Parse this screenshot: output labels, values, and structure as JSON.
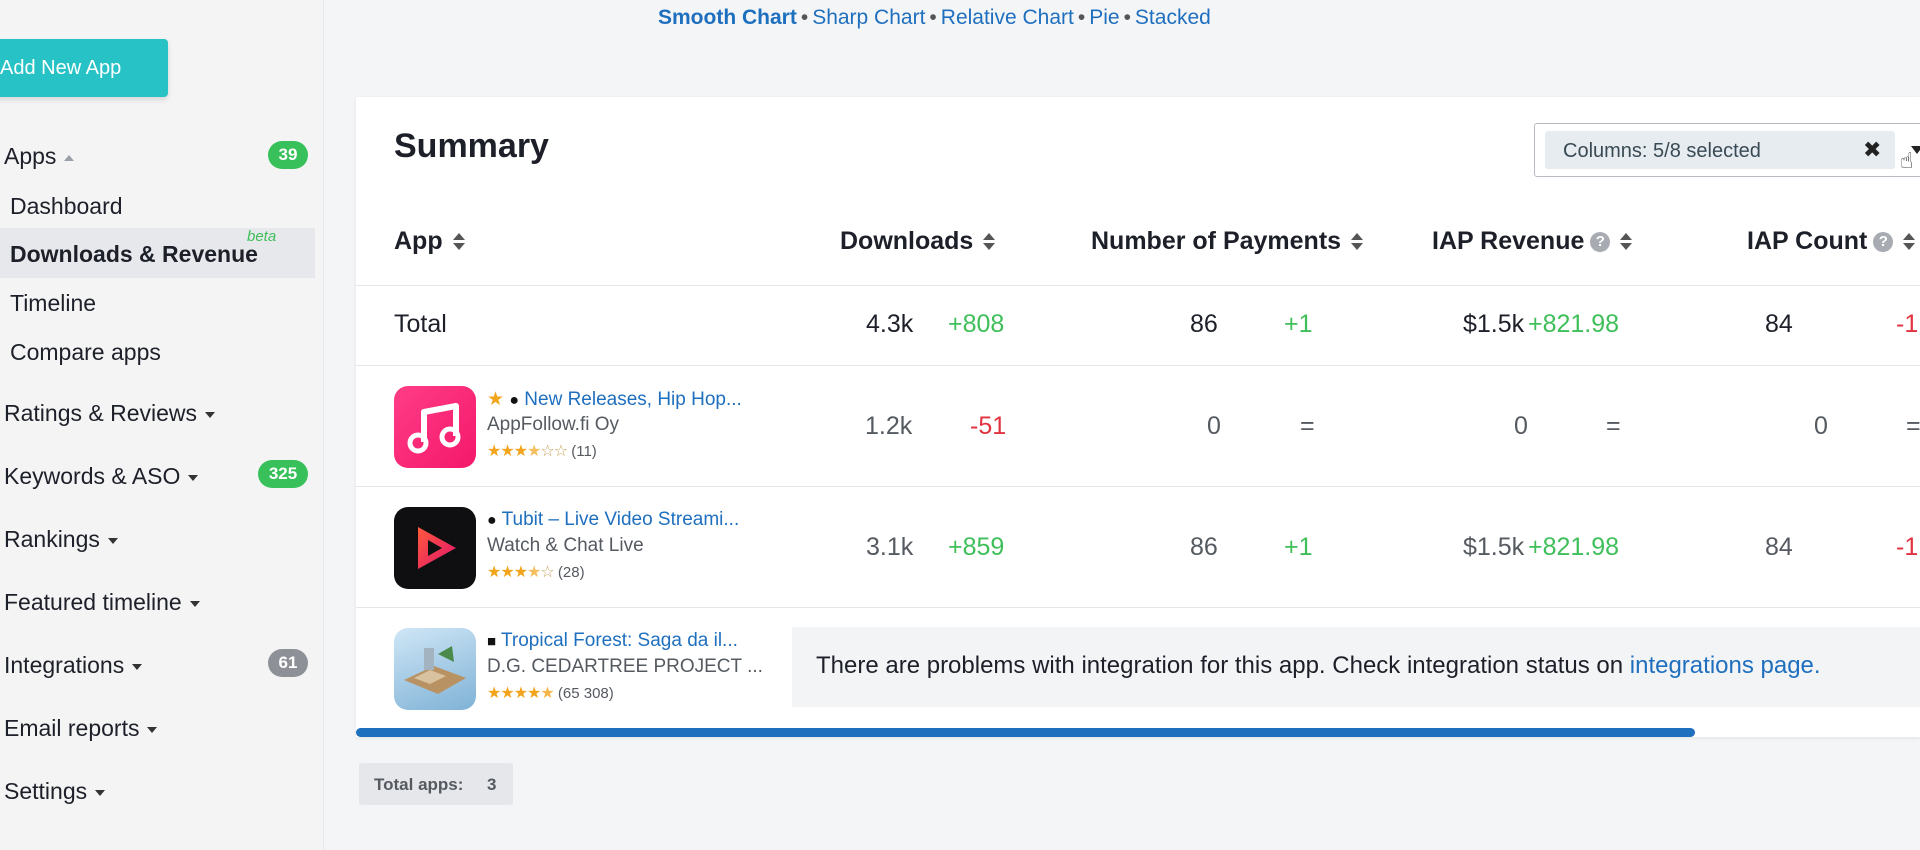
{
  "sidebar": {
    "add_button": "Add New App",
    "apps": {
      "label": "Apps",
      "count": "39"
    },
    "apps_sub": [
      {
        "label": "Dashboard"
      },
      {
        "label": "Downloads & Revenue",
        "badge": "beta"
      },
      {
        "label": "Timeline"
      },
      {
        "label": "Compare apps"
      }
    ],
    "items": [
      {
        "label": "Ratings & Reviews"
      },
      {
        "label": "Keywords & ASO",
        "count": "325"
      },
      {
        "label": "Rankings"
      },
      {
        "label": "Featured timeline"
      },
      {
        "label": "Integrations",
        "count": "61"
      },
      {
        "label": "Email reports"
      },
      {
        "label": "Settings"
      }
    ]
  },
  "chart_links": {
    "smooth": "Smooth Chart",
    "sharp": "Sharp Chart",
    "relative": "Relative Chart",
    "pie": "Pie",
    "stacked": "Stacked",
    "separator": "•"
  },
  "summary": {
    "title": "Summary",
    "columns_select": "Columns: 5/8 selected",
    "clear_symbol": "✖",
    "headers": {
      "app": "App",
      "downloads": "Downloads",
      "payments": "Number of Payments",
      "iap_revenue": "IAP Revenue",
      "iap_count": "IAP Count"
    },
    "total": {
      "label": "Total",
      "downloads": "4.3k",
      "downloads_delta": "+808",
      "payments": "86",
      "payments_delta": "+1",
      "iap_revenue": "$1.5k",
      "iap_revenue_delta": "+821.98",
      "iap_count": "84",
      "iap_count_delta": "-1"
    },
    "apps": [
      {
        "title": "New Releases, Hip Hop...",
        "developer": "AppFollow.fi Oy",
        "rating_count": "(11)",
        "downloads": "1.2k",
        "downloads_delta": "-51",
        "payments": "0",
        "payments_delta": "=",
        "iap_revenue": "0",
        "iap_revenue_delta": "=",
        "iap_count": "0",
        "iap_count_delta": "="
      },
      {
        "title": "Tubit – Live Video Streami...",
        "developer": "Watch & Chat Live",
        "rating_count": "(28)",
        "downloads": "3.1k",
        "downloads_delta": "+859",
        "payments": "86",
        "payments_delta": "+1",
        "iap_revenue": "$1.5k",
        "iap_revenue_delta": "+821.98",
        "iap_count": "84",
        "iap_count_delta": "-1"
      },
      {
        "title": "Tropical Forest: Saga da il...",
        "developer": "D.G. CEDARTREE PROJECT ...",
        "rating_count": "(65 308)"
      }
    ],
    "warning_text": "There are problems with integration for this app. Check integration status on ",
    "warning_link": "integrations page."
  },
  "footer": {
    "total_apps_label": "Total apps:",
    "total_apps_value": "3"
  }
}
